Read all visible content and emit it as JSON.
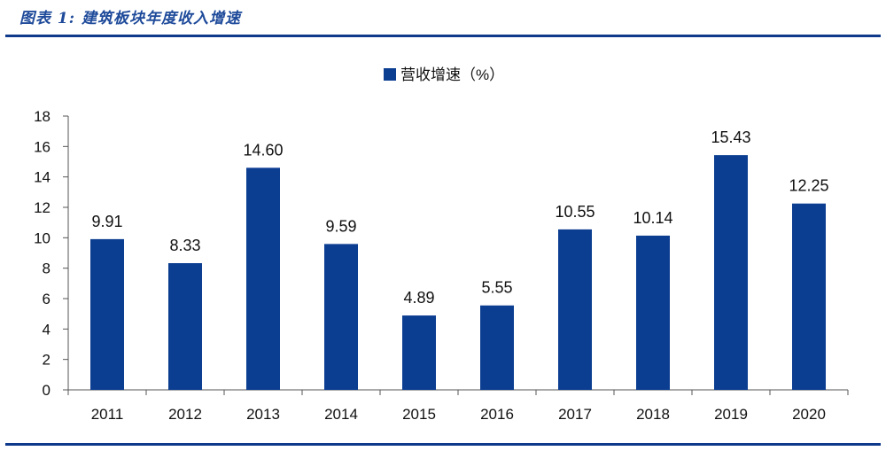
{
  "figure": {
    "title": "图表 1:  建筑板块年度收入增速"
  },
  "colors": {
    "bar": "#0b3d91",
    "rule": "#0f3a8c",
    "title": "#1e4a9a"
  },
  "chart_data": {
    "type": "bar",
    "categories": [
      "2011",
      "2012",
      "2013",
      "2014",
      "2015",
      "2016",
      "2017",
      "2018",
      "2019",
      "2020"
    ],
    "series": [
      {
        "name": "营收增速（%）",
        "values": [
          9.91,
          8.33,
          14.6,
          9.59,
          4.89,
          5.55,
          10.55,
          10.14,
          15.43,
          12.25
        ],
        "labels": [
          "9.91",
          "8.33",
          "14.60",
          "9.59",
          "4.89",
          "5.55",
          "10.55",
          "10.14",
          "15.43",
          "12.25"
        ]
      }
    ],
    "ylim": [
      0,
      18
    ],
    "yticks": [
      "0",
      "2",
      "4",
      "6",
      "8",
      "10",
      "12",
      "14",
      "16",
      "18"
    ],
    "legend_position": "top-center",
    "grid": false
  }
}
